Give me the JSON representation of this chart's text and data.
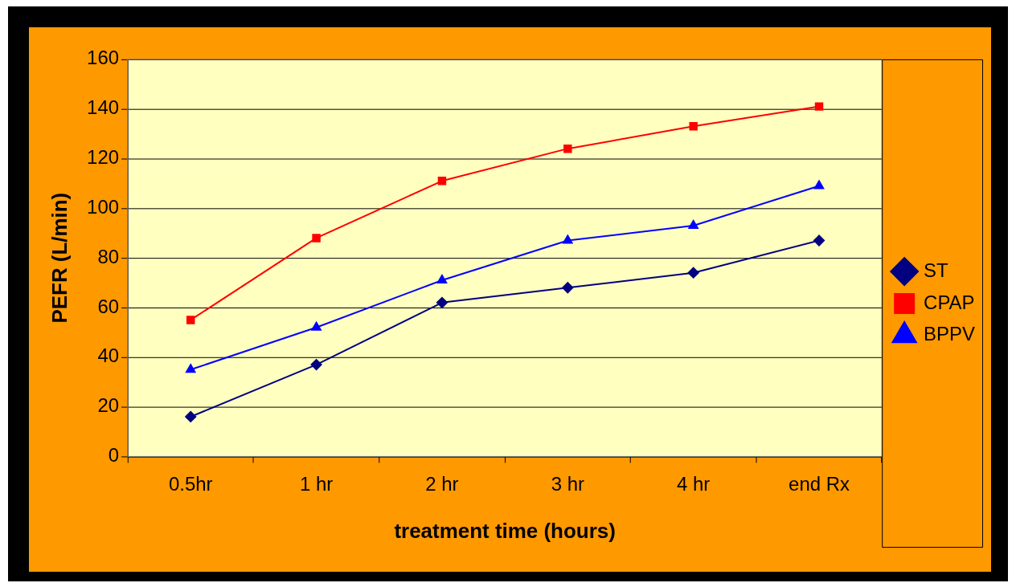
{
  "chart_data": {
    "type": "line",
    "xlabel": "treatment time (hours)",
    "ylabel": "PEFR (L/min)",
    "categories": [
      "0.5hr",
      "1 hr",
      "2 hr",
      "3 hr",
      "4 hr",
      "end Rx"
    ],
    "series": [
      {
        "name": "ST",
        "color": "#000080",
        "marker": "diamond",
        "values": [
          16,
          37,
          62,
          68,
          74,
          87
        ]
      },
      {
        "name": "CPAP",
        "color": "#ff0000",
        "marker": "square",
        "values": [
          55,
          88,
          111,
          124,
          133,
          141
        ]
      },
      {
        "name": "BPPV",
        "color": "#0000ff",
        "marker": "triangle",
        "values": [
          35,
          52,
          71,
          87,
          93,
          109
        ]
      }
    ],
    "ylim": [
      0,
      160
    ],
    "yticks": [
      0,
      20,
      40,
      60,
      80,
      100,
      120,
      140,
      160
    ],
    "grid": "y",
    "legend": "right",
    "line_style": "solid"
  }
}
